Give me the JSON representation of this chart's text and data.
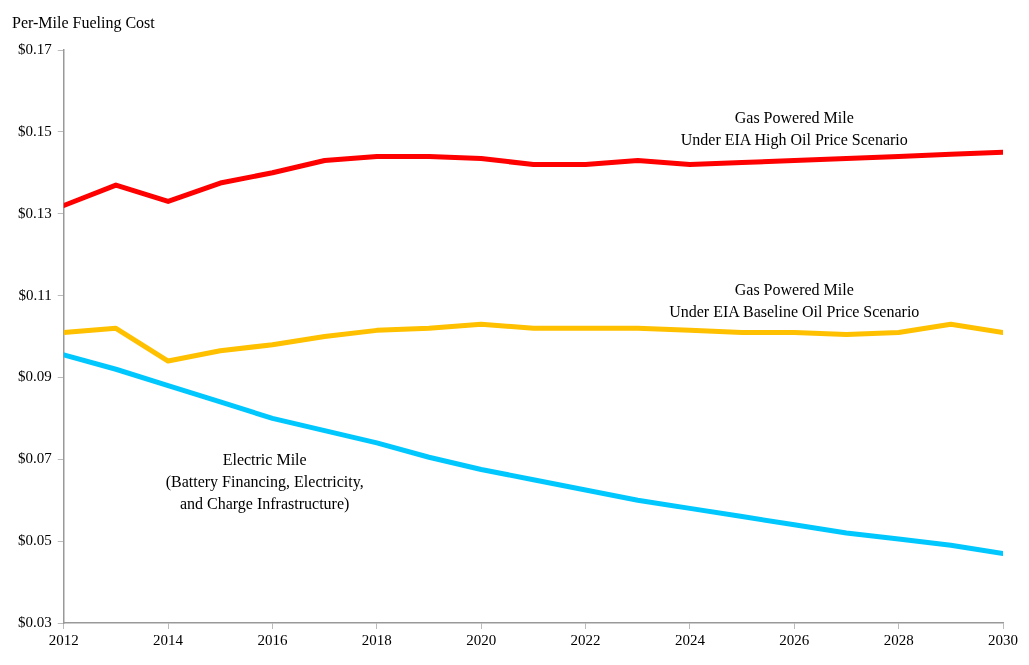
{
  "chart_data": {
    "type": "line",
    "ylabel": "Per-Mile Fueling Cost",
    "x": [
      2012,
      2013,
      2014,
      2015,
      2016,
      2017,
      2018,
      2019,
      2020,
      2021,
      2022,
      2023,
      2024,
      2025,
      2026,
      2027,
      2028,
      2029,
      2030
    ],
    "series": [
      {
        "name": "Gas Powered Mile\nUnder EIA High Oil Price Scenario",
        "color": "#ff0000",
        "values": [
          0.132,
          0.137,
          0.133,
          0.1375,
          0.14,
          0.143,
          0.144,
          0.144,
          0.1435,
          0.142,
          0.142,
          0.143,
          0.142,
          0.1425,
          0.143,
          0.1435,
          0.144,
          0.1445,
          0.145
        ]
      },
      {
        "name": "Gas Powered Mile\nUnder EIA Baseline Oil Price Scenario",
        "color": "#ffc000",
        "values": [
          0.101,
          0.102,
          0.094,
          0.0965,
          0.098,
          0.1,
          0.1015,
          0.102,
          0.103,
          0.102,
          0.102,
          0.102,
          0.1015,
          0.101,
          0.101,
          0.1005,
          0.101,
          0.103,
          0.101
        ]
      },
      {
        "name": "Electric Mile\n(Battery Financing, Electricity,\nand Charge Infrastructure)",
        "color": "#00c8ff",
        "values": [
          0.0955,
          0.092,
          0.088,
          0.084,
          0.08,
          0.077,
          0.074,
          0.0705,
          0.0675,
          0.065,
          0.0625,
          0.06,
          0.058,
          0.056,
          0.054,
          0.052,
          0.0505,
          0.049,
          0.047
        ]
      }
    ],
    "xlim": [
      2012,
      2030
    ],
    "xticks": [
      2012,
      2014,
      2016,
      2018,
      2020,
      2022,
      2024,
      2026,
      2028,
      2030
    ],
    "ylim": [
      0.03,
      0.17
    ],
    "yticks": [
      {
        "value": 0.03,
        "label": "$0.03"
      },
      {
        "value": 0.05,
        "label": "$0.05"
      },
      {
        "value": 0.07,
        "label": "$0.07"
      },
      {
        "value": 0.09,
        "label": "$0.09"
      },
      {
        "value": 0.11,
        "label": "$0.11"
      },
      {
        "value": 0.13,
        "label": "$0.13"
      },
      {
        "value": 0.15,
        "label": "$0.15"
      },
      {
        "value": 0.17,
        "label": "$0.17"
      }
    ],
    "grid": false,
    "legend": false,
    "marker": "none",
    "line_style": "solid"
  }
}
